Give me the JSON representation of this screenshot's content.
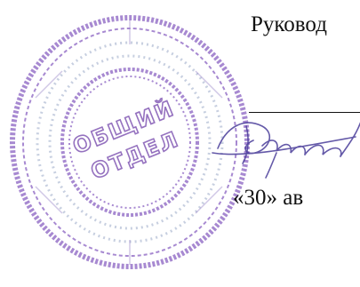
{
  "document": {
    "heading": "Руковод",
    "date_line": "«30» ав"
  },
  "stamp": {
    "kind": "round-seal",
    "center_text_lines": [
      "ОБЩИЙ",
      "ОТДЕЛ"
    ],
    "color": "#7b4fb0"
  },
  "signature": {
    "kind": "handwritten",
    "color": "#4a3d9a"
  }
}
